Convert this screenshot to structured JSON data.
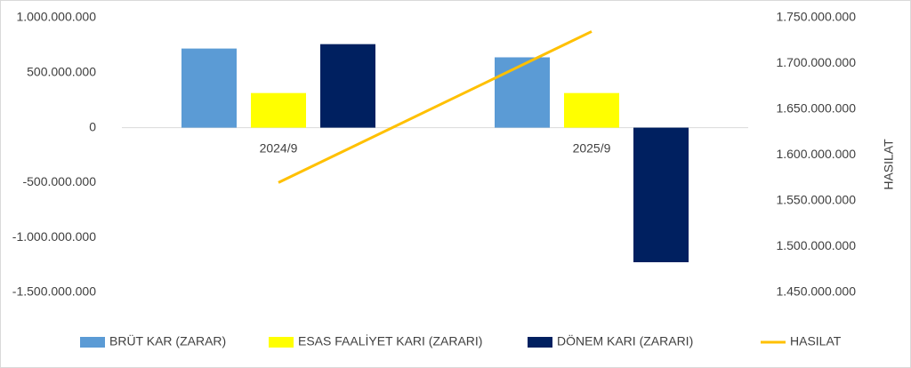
{
  "chart_data": {
    "type": "bar",
    "categories": [
      "2024/9",
      "2025/9"
    ],
    "series": [
      {
        "name": "BRÜT KAR (ZARAR)",
        "color": "#5b9bd5",
        "values": [
          720000000,
          640000000
        ]
      },
      {
        "name": "ESAS FAALİYET KARI (ZARARI)",
        "color": "#ffff00",
        "values": [
          315000000,
          315000000
        ]
      },
      {
        "name": "DÖNEM KARI (ZARARI)",
        "color": "#002060",
        "values": [
          760000000,
          -1225000000
        ]
      },
      {
        "name": "HASILAT",
        "color": "#ffc000",
        "type": "line",
        "axis": "y2",
        "values": [
          1570000000,
          1735000000
        ]
      }
    ],
    "ylim": [
      -1500000000,
      1000000000
    ],
    "yticks": [
      {
        "value": -1500000000,
        "label": "-1.500.000.000"
      },
      {
        "value": -1000000000,
        "label": "-1.000.000.000"
      },
      {
        "value": -500000000,
        "label": "-500.000.000"
      },
      0,
      {
        "value": 500000000,
        "label": "500.000.000"
      },
      {
        "value": 1000000000,
        "label": "1.000.000.000"
      }
    ],
    "y2lim": [
      1450000000,
      1750000000
    ],
    "y2ticks": [
      {
        "value": 1450000000,
        "label": "1.450.000.000"
      },
      {
        "value": 1500000000,
        "label": "1.500.000.000"
      },
      {
        "value": 1550000000,
        "label": "1.550.000.000"
      },
      {
        "value": 1600000000,
        "label": "1.600.000.000"
      },
      {
        "value": 1650000000,
        "label": "1.650.000.000"
      },
      {
        "value": 1700000000,
        "label": "1.700.000.000"
      },
      {
        "value": 1750000000,
        "label": "1.750.000.000"
      }
    ],
    "y2label": "HASILAT",
    "grid": false,
    "legend": "bottom"
  }
}
